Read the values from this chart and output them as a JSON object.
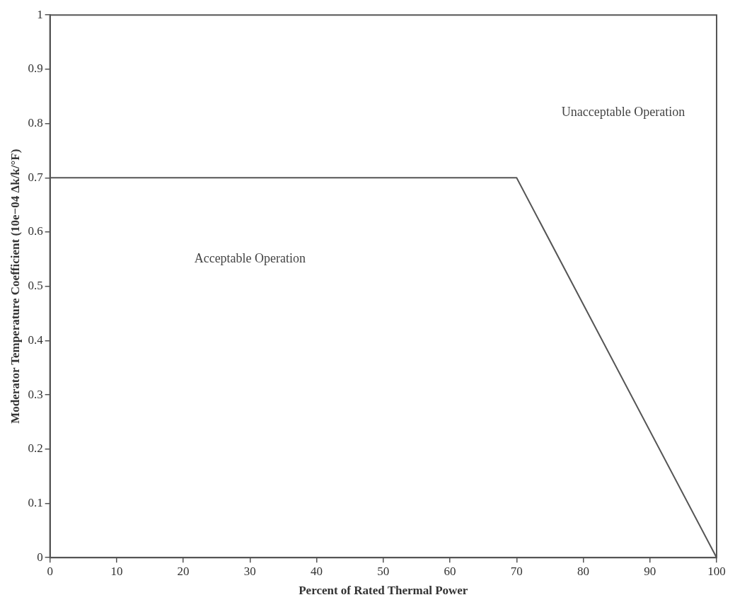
{
  "chart_data": {
    "type": "line",
    "xlabel": "Percent of Rated Thermal Power",
    "ylabel": "Moderator Temperature Coefficient (10e−04 Δk/k/°F)",
    "x": [
      0,
      70,
      100
    ],
    "series": [
      {
        "color": "#555555",
        "values": [
          0.7,
          0.7,
          0
        ]
      }
    ],
    "xlim": [
      0,
      100
    ],
    "xticks": [
      0,
      10,
      20,
      30,
      40,
      50,
      60,
      70,
      80,
      90,
      100
    ],
    "ylim": [
      0,
      1
    ],
    "yticks": [
      0,
      0.1,
      0.2,
      0.3,
      0.4,
      0.5,
      0.6,
      0.7,
      0.8,
      0.9,
      1
    ],
    "annotations": [
      "Acceptable Operation",
      "Unacceptable Operation"
    ],
    "grid": false,
    "legend": false,
    "marker": "none",
    "line_style": "solid"
  }
}
